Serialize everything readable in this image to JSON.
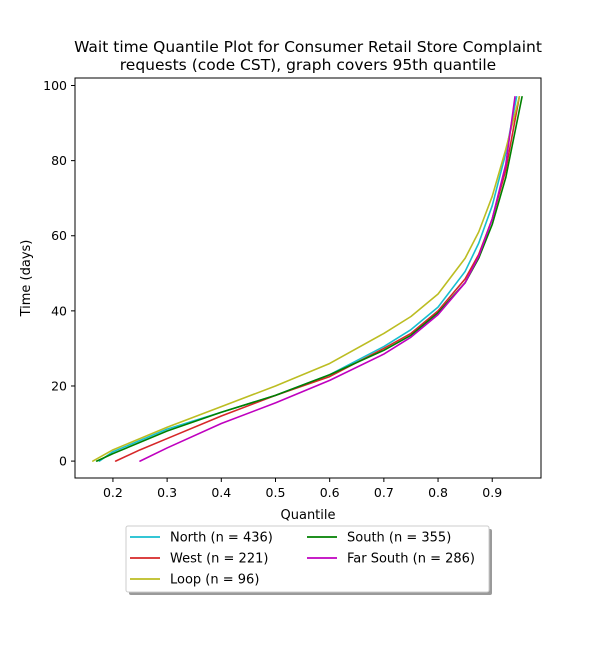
{
  "chart_data": {
    "type": "line",
    "title_lines": [
      "Wait time Quantile Plot for Consumer Retail Store Complaint",
      "requests (code CST), graph covers 95th quantile"
    ],
    "xlabel": "Quantile",
    "ylabel": "Time (days)",
    "xlim": [
      0.13,
      0.99
    ],
    "ylim": [
      -4.5,
      102
    ],
    "xticks": [
      0.2,
      0.3,
      0.4,
      0.5,
      0.6,
      0.7,
      0.8,
      0.9
    ],
    "xtick_labels": [
      "0.2",
      "0.3",
      "0.4",
      "0.5",
      "0.6",
      "0.7",
      "0.8",
      "0.9"
    ],
    "yticks": [
      0,
      20,
      40,
      60,
      80,
      100
    ],
    "ytick_labels": [
      "0",
      "20",
      "40",
      "60",
      "80",
      "100"
    ],
    "grid": false,
    "legend": {
      "placement": "below",
      "columns": 2
    },
    "series": [
      {
        "name": "North (n = 436)",
        "color": "#17becf",
        "x": [
          0.175,
          0.2,
          0.3,
          0.4,
          0.5,
          0.6,
          0.7,
          0.75,
          0.8,
          0.85,
          0.875,
          0.9,
          0.925,
          0.945
        ],
        "y": [
          0,
          2.5,
          8.5,
          13,
          17.5,
          23,
          30.5,
          35,
          41,
          50.5,
          58,
          68,
          82,
          97
        ]
      },
      {
        "name": "West (n = 221)",
        "color": "#d62728",
        "x": [
          0.205,
          0.25,
          0.3,
          0.4,
          0.5,
          0.6,
          0.7,
          0.75,
          0.8,
          0.85,
          0.875,
          0.9,
          0.925,
          0.95
        ],
        "y": [
          0,
          3,
          6,
          12,
          17.5,
          22.5,
          30,
          34,
          40,
          48.5,
          55,
          64.5,
          77.5,
          97
        ]
      },
      {
        "name": "Loop (n = 96)",
        "color": "#bcbd22",
        "x": [
          0.163,
          0.2,
          0.3,
          0.4,
          0.5,
          0.6,
          0.7,
          0.75,
          0.8,
          0.85,
          0.875,
          0.9,
          0.925,
          0.95
        ],
        "y": [
          0,
          3,
          9,
          14.5,
          20,
          26,
          34,
          38.5,
          44.5,
          54,
          61,
          70.5,
          83,
          97
        ]
      },
      {
        "name": "South (n = 355)",
        "color": "#008000",
        "x": [
          0.17,
          0.2,
          0.3,
          0.4,
          0.5,
          0.6,
          0.7,
          0.75,
          0.8,
          0.85,
          0.875,
          0.9,
          0.925,
          0.955
        ],
        "y": [
          0,
          2,
          8,
          13,
          17.5,
          23,
          29.5,
          33.5,
          39.5,
          47.5,
          54,
          63,
          75.5,
          97
        ]
      },
      {
        "name": "Far South (n = 286)",
        "color": "#bf00bf",
        "x": [
          0.25,
          0.3,
          0.4,
          0.5,
          0.6,
          0.7,
          0.75,
          0.8,
          0.85,
          0.875,
          0.9,
          0.925,
          0.942
        ],
        "y": [
          0,
          3.5,
          10,
          15.5,
          21.5,
          28.5,
          33,
          39,
          47.5,
          54.5,
          64.5,
          79,
          97
        ]
      }
    ]
  }
}
